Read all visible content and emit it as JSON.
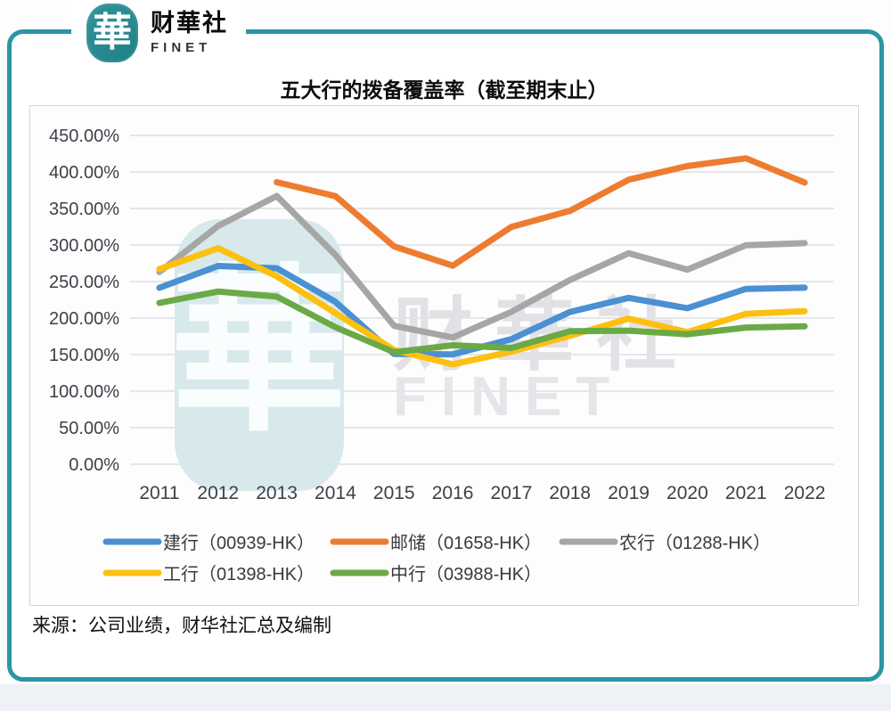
{
  "brand": {
    "logo_char": "華",
    "name_cn": "财華社",
    "name_en": "FINET"
  },
  "title": "五大行的拨备覆盖率（截至期末止）",
  "source_note": "来源：公司业绩，财华社汇总及编制",
  "watermark": {
    "logo_char": "華",
    "text_cn": "财華社",
    "text_en": "FINET"
  },
  "colors": {
    "frame_teal": "#2a96a4",
    "grid_gray": "#d9d9df",
    "axis_text": "#3f3f48"
  },
  "chart_data": {
    "type": "line",
    "title": "五大行的拨备覆盖率（截至期末止）",
    "categories": [
      "2011",
      "2012",
      "2013",
      "2014",
      "2015",
      "2016",
      "2017",
      "2018",
      "2019",
      "2020",
      "2021",
      "2022"
    ],
    "series": [
      {
        "name": "建行（00939-HK）",
        "color": "#4a90d2",
        "values": [
          241.44,
          271.29,
          268.22,
          222.33,
          150.99,
          150.36,
          171.08,
          208.37,
          227.69,
          213.59,
          239.96,
          241.53
        ]
      },
      {
        "name": "邮储（01658-HK）",
        "color": "#ee7c30",
        "values": [
          null,
          null,
          386.0,
          367.0,
          298.0,
          271.69,
          324.77,
          346.8,
          389.45,
          408.06,
          418.61,
          385.51
        ]
      },
      {
        "name": "农行（01288-HK）",
        "color": "#a6a6a6",
        "values": [
          263.1,
          326.14,
          367.04,
          286.53,
          189.43,
          173.4,
          208.37,
          252.18,
          288.75,
          266.39,
          299.73,
          302.6
        ]
      },
      {
        "name": "工行（01398-HK）",
        "color": "#fdc010",
        "values": [
          266.92,
          295.55,
          257.19,
          206.9,
          156.34,
          136.69,
          154.07,
          175.76,
          199.32,
          180.68,
          205.84,
          209.47
        ]
      },
      {
        "name": "中行（03988-HK）",
        "color": "#6aaa46",
        "values": [
          220.75,
          236.3,
          229.35,
          187.6,
          153.3,
          162.82,
          159.18,
          181.97,
          182.86,
          177.84,
          187.05,
          188.73
        ]
      }
    ],
    "xlabel": "",
    "ylabel": "",
    "ylim": [
      0,
      450
    ],
    "ytick_step": 50,
    "ytick_labels": [
      "0.00%",
      "50.00%",
      "100.00%",
      "150.00%",
      "200.00%",
      "250.00%",
      "300.00%",
      "350.00%",
      "400.00%",
      "450.00%"
    ],
    "grid": "horizontal-only",
    "legend_position": "bottom",
    "legend_rows": [
      [
        0,
        1,
        2
      ],
      [
        3,
        4
      ]
    ]
  }
}
